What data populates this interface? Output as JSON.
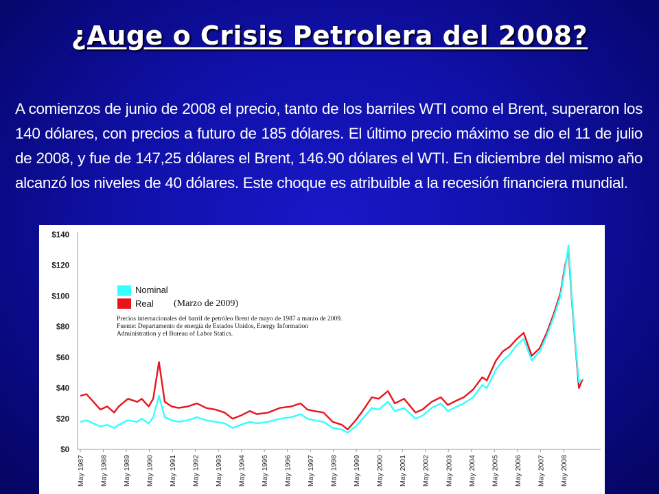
{
  "slide": {
    "title": "¿Auge o Crisis Petrolera del 2008?",
    "paragraph": "A comienzos de junio de 2008 el precio, tanto de los barriles WTI como el Brent, superaron los 140 dólares, con precios a futuro de 185 dólares. El último precio máximo se dio el 11 de julio de 2008, y fue de 147,25 dólares el Brent, 146.90 dólares el WTI. En diciembre del mismo año alcanzó los niveles de 40 dólares. Este choque es atribuible a la recesión financiera mundial."
  },
  "colors": {
    "nominal": "#33ffff",
    "real": "#e8141c",
    "background": "#1010a8"
  },
  "chart_data": {
    "type": "line",
    "x_unit": "year (fractional)",
    "xlim": [
      1987.33,
      2009.17
    ],
    "ylim": [
      0,
      140
    ],
    "y_ticks": [
      "$140",
      "$120",
      "$100",
      "$80",
      "$60",
      "$40",
      "$20",
      "$0"
    ],
    "y_tick_values": [
      140,
      120,
      100,
      80,
      60,
      40,
      20,
      0
    ],
    "x_ticks": [
      "May 1987",
      "May 1988",
      "May 1989",
      "May 1990",
      "May 1991",
      "May 1992",
      "May 1993",
      "May 1994",
      "May 1995",
      "May 1996",
      "May 1997",
      "May 1998",
      "May 1999",
      "May 2000",
      "May 2001",
      "May 2002",
      "May 2003",
      "May 2004",
      "May 2005",
      "May 2006",
      "May 2007",
      "May 2008"
    ],
    "x_tick_values": [
      1987.33,
      1988.33,
      1989.33,
      1990.33,
      1991.33,
      1992.33,
      1993.33,
      1994.33,
      1995.33,
      1996.33,
      1997.33,
      1998.33,
      1999.33,
      2000.33,
      2001.33,
      2002.33,
      2003.33,
      2004.33,
      2005.33,
      2006.33,
      2007.33,
      2008.33
    ],
    "legend": [
      {
        "name": "Nominal"
      },
      {
        "name": "Real",
        "note": "(Marzo de 2009)"
      }
    ],
    "annotation": [
      "Precios internacionales del barril de petróleo Brent de mayo de 1987 a marzo de 2009.",
      "Fuente: Departamento de energía de Estados Unidos, Energy Information",
      "Administration y el Bureau of Labor Statics."
    ],
    "series": [
      {
        "name": "Nominal",
        "x": [
          1987.33,
          1987.6,
          1987.9,
          1988.2,
          1988.5,
          1988.8,
          1989.0,
          1989.4,
          1989.8,
          1990.0,
          1990.3,
          1990.5,
          1990.75,
          1991.0,
          1991.3,
          1991.6,
          1992.0,
          1992.4,
          1992.8,
          1993.2,
          1993.6,
          1993.95,
          1994.3,
          1994.7,
          1995.0,
          1995.5,
          1996.0,
          1996.5,
          1996.9,
          1997.2,
          1997.5,
          1997.9,
          1998.3,
          1998.7,
          1998.95,
          1999.3,
          1999.6,
          2000.0,
          2000.3,
          2000.7,
          2001.0,
          2001.4,
          2001.9,
          2002.2,
          2002.6,
          2003.0,
          2003.3,
          2003.7,
          2004.0,
          2004.4,
          2004.8,
          2005.0,
          2005.4,
          2005.7,
          2006.0,
          2006.3,
          2006.6,
          2006.95,
          2007.3,
          2007.6,
          2007.9,
          2008.2,
          2008.4,
          2008.55,
          2008.7,
          2008.9,
          2009.0,
          2009.17
        ],
        "values": [
          18,
          19,
          17,
          15,
          16,
          14,
          16,
          19,
          18,
          20,
          17,
          21,
          35,
          21,
          19,
          18,
          19,
          21,
          19,
          18,
          17,
          14,
          16,
          18,
          17,
          18,
          20,
          21,
          23,
          20,
          19,
          18,
          14,
          13,
          11,
          15,
          20,
          27,
          26,
          31,
          25,
          27,
          20,
          22,
          27,
          30,
          25,
          28,
          30,
          34,
          42,
          40,
          52,
          58,
          62,
          68,
          72,
          58,
          64,
          74,
          86,
          100,
          118,
          133,
          98,
          60,
          44,
          46
        ]
      },
      {
        "name": "Real",
        "x": [
          1987.33,
          1987.6,
          1987.9,
          1988.2,
          1988.5,
          1988.8,
          1989.0,
          1989.4,
          1989.8,
          1990.0,
          1990.3,
          1990.5,
          1990.75,
          1991.0,
          1991.3,
          1991.6,
          1992.0,
          1992.4,
          1992.8,
          1993.2,
          1993.6,
          1993.95,
          1994.3,
          1994.7,
          1995.0,
          1995.5,
          1996.0,
          1996.5,
          1996.9,
          1997.2,
          1997.5,
          1997.9,
          1998.3,
          1998.7,
          1998.95,
          1999.3,
          1999.6,
          2000.0,
          2000.3,
          2000.7,
          2001.0,
          2001.4,
          2001.9,
          2002.2,
          2002.6,
          2003.0,
          2003.3,
          2003.7,
          2004.0,
          2004.4,
          2004.8,
          2005.0,
          2005.4,
          2005.7,
          2006.0,
          2006.3,
          2006.6,
          2006.95,
          2007.3,
          2007.6,
          2007.9,
          2008.2,
          2008.4,
          2008.55,
          2008.7,
          2008.9,
          2009.0,
          2009.17
        ],
        "values": [
          35,
          36,
          31,
          26,
          28,
          24,
          28,
          33,
          31,
          33,
          28,
          33,
          57,
          31,
          28,
          27,
          28,
          30,
          27,
          26,
          24,
          20,
          22,
          25,
          23,
          24,
          27,
          28,
          30,
          26,
          25,
          24,
          18,
          16,
          13,
          19,
          25,
          34,
          33,
          38,
          30,
          33,
          24,
          26,
          31,
          34,
          29,
          32,
          34,
          39,
          47,
          45,
          58,
          64,
          67,
          72,
          76,
          61,
          66,
          76,
          88,
          102,
          120,
          130,
          96,
          58,
          40,
          46
        ]
      }
    ]
  }
}
